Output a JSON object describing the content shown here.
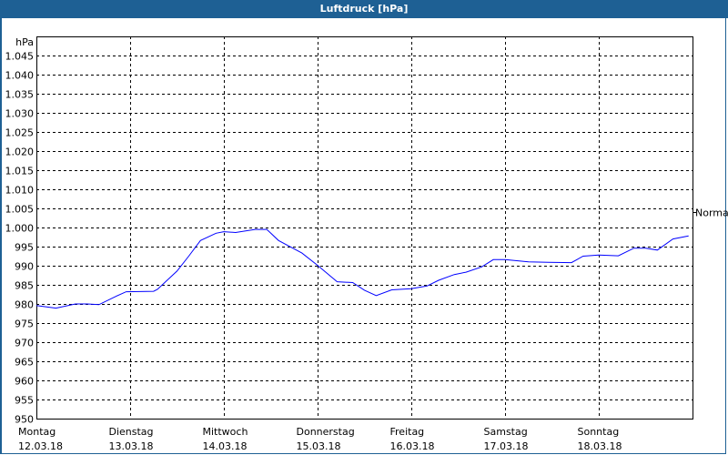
{
  "window": {
    "title": "Luftdruck [hPa]"
  },
  "chart_data": {
    "type": "line",
    "title": "Luftdruck [hPa]",
    "ylabel": "hPa",
    "ylim": [
      950,
      1050
    ],
    "yticks": [
      950,
      955,
      960,
      965,
      970,
      975,
      980,
      985,
      990,
      995,
      1000,
      1005,
      1010,
      1015,
      1020,
      1025,
      1030,
      1035,
      1040,
      1045
    ],
    "ytick_labels": [
      "950",
      "955",
      "960",
      "965",
      "970",
      "975",
      "980",
      "985",
      "990",
      "995",
      "1.000",
      "1.005",
      "1.010",
      "1.015",
      "1.020",
      "1.025",
      "1.030",
      "1.035",
      "1.040",
      "1.045"
    ],
    "xlim": [
      "2018-03-12 00:00",
      "2018-03-19 00:00"
    ],
    "xticks": [
      {
        "day": "Montag",
        "date": "12.03.18"
      },
      {
        "day": "Dienstag",
        "date": "13.03.18"
      },
      {
        "day": "Mittwoch",
        "date": "14.03.18"
      },
      {
        "day": "Donnerstag",
        "date": "15.03.18"
      },
      {
        "day": "Freitag",
        "date": "16.03.18"
      },
      {
        "day": "Samstag",
        "date": "17.03.18"
      },
      {
        "day": "Sonntag",
        "date": "18.03.18"
      }
    ],
    "grid": true,
    "reference": {
      "label": "Normal",
      "value": 1004
    },
    "series_color": "#0000ff",
    "series": [
      {
        "x": [
          "2018-03-12 00:00",
          "2018-03-12 05:00",
          "2018-03-12 10:00",
          "2018-03-12 13:00",
          "2018-03-12 16:00",
          "2018-03-12 20:00",
          "2018-03-12 23:00",
          "2018-03-13 06:00",
          "2018-03-13 07:00",
          "2018-03-13 12:00",
          "2018-03-13 15:00",
          "2018-03-13 18:00",
          "2018-03-13 22:00",
          "2018-03-14 00:00",
          "2018-03-14 03:00",
          "2018-03-14 08:00",
          "2018-03-14 11:00",
          "2018-03-14 14:00",
          "2018-03-14 20:00",
          "2018-03-15 00:00",
          "2018-03-15 05:00",
          "2018-03-15 09:00",
          "2018-03-15 12:00",
          "2018-03-15 15:00",
          "2018-03-15 19:00",
          "2018-03-16 00:00",
          "2018-03-16 04:00",
          "2018-03-16 07:00",
          "2018-03-16 11:00",
          "2018-03-16 14:00",
          "2018-03-16 18:00",
          "2018-03-16 21:00",
          "2018-03-17 00:00",
          "2018-03-17 06:00",
          "2018-03-17 11:00",
          "2018-03-17 17:00",
          "2018-03-17 20:00",
          "2018-03-18 00:00",
          "2018-03-18 05:00",
          "2018-03-18 09:00",
          "2018-03-18 12:00",
          "2018-03-18 15:00",
          "2018-03-18 19:00",
          "2018-03-18 23:00"
        ],
        "y": [
          979.6,
          978.9,
          980,
          980,
          979.8,
          981.8,
          983.2,
          983.3,
          983.8,
          988.6,
          992.5,
          996.6,
          998.5,
          998.9,
          998.7,
          999.5,
          999.5,
          996.6,
          993.3,
          990.1,
          985.8,
          985.6,
          983.6,
          982.2,
          983.7,
          984,
          984.7,
          986.2,
          987.7,
          988.3,
          989.7,
          991.6,
          991.6,
          991,
          990.9,
          990.8,
          992.5,
          992.8,
          992.6,
          994.6,
          994.6,
          994.1,
          997,
          997.8
        ]
      }
    ]
  }
}
